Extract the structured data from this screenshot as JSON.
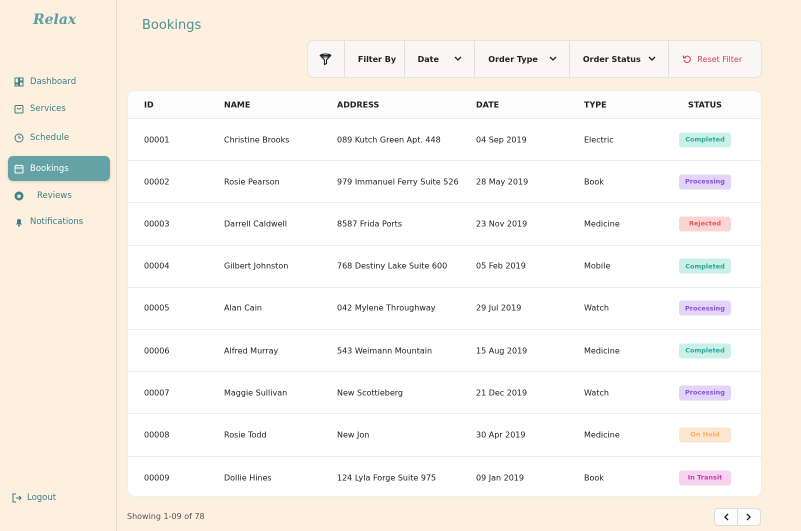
{
  "sidebar": {
    "logo": "Relax",
    "nav": [
      "Dashboard",
      "Services",
      "Schedule",
      "Bookings",
      "Reviews",
      "Notifications"
    ],
    "active": 3,
    "logout": "Logout"
  },
  "header": {
    "title": "Bookings"
  },
  "filter_bar": {
    "label": "Filter By",
    "filters": [
      "Date",
      "Order Type",
      "Order Status"
    ],
    "reset": "Reset Filter"
  },
  "table": {
    "headers": [
      "ID",
      "NAME",
      "ADDRESS",
      "DATE",
      "TYPE",
      "STATUS"
    ],
    "rows": [
      {
        "id": "00001",
        "name": "Christine Brooks",
        "address": "089 Kutch Green Apt. 448",
        "date": "04 Sep 2019",
        "type": "Electric",
        "status": {
          "label": "Completed",
          "color": "#2aa898",
          "background": "#c9f1e8"
        }
      },
      {
        "id": "00002",
        "name": "Rosie Pearson",
        "address": "979 Immanuel Ferry Suite 526",
        "date": "28 May 2019",
        "type": "Book",
        "status": {
          "label": "Processing",
          "color": "#8a4fd8",
          "background": "#e3d5f8"
        }
      },
      {
        "id": "00003",
        "name": "Darrell Caldwell",
        "address": "8587 Frida Ports",
        "date": "23 Nov 2019",
        "type": "Medicine",
        "status": {
          "label": "Rejected",
          "color": "#e25a5a",
          "background": "#fbd5d3"
        }
      },
      {
        "id": "00004",
        "name": "Gilbert Johnston",
        "address": "768 Destiny Lake Suite 600",
        "date": "05 Feb 2019",
        "type": "Mobile",
        "status": {
          "label": "Completed",
          "color": "#2aa898",
          "background": "#c9f1e8"
        }
      },
      {
        "id": "00005",
        "name": "Alan Cain",
        "address": "042 Mylene Throughway",
        "date": "29 Jul 2019",
        "type": "Watch",
        "status": {
          "label": "Processing",
          "color": "#8a4fd8",
          "background": "#e3d5f8"
        }
      },
      {
        "id": "00006",
        "name": "Alfred Murray",
        "address": "543 Weimann Mountain",
        "date": "15 Aug 2019",
        "type": "Medicine",
        "status": {
          "label": "Completed",
          "color": "#2aa898",
          "background": "#c9f1e8"
        }
      },
      {
        "id": "00007",
        "name": "Maggie Sullivan",
        "address": "New Scottieberg",
        "date": "21 Dec 2019",
        "type": "Watch",
        "status": {
          "label": "Processing",
          "color": "#8a4fd8",
          "background": "#e3d5f8"
        }
      },
      {
        "id": "00008",
        "name": "Rosie Todd",
        "address": "New Jon",
        "date": "30 Apr 2019",
        "type": "Medicine",
        "status": {
          "label": "On Hold",
          "color": "#f2ad6a",
          "background": "#fde6cf"
        }
      },
      {
        "id": "00009",
        "name": "Dollie Hines",
        "address": "124 Lyla Forge Suite 975",
        "date": "09 Jan 2019",
        "type": "Book",
        "status": {
          "label": "In Transit",
          "color": "#c83cb2",
          "background": "#f8d3ef"
        }
      }
    ]
  },
  "footer": {
    "summary": "Showing 1-09 of 78"
  }
}
